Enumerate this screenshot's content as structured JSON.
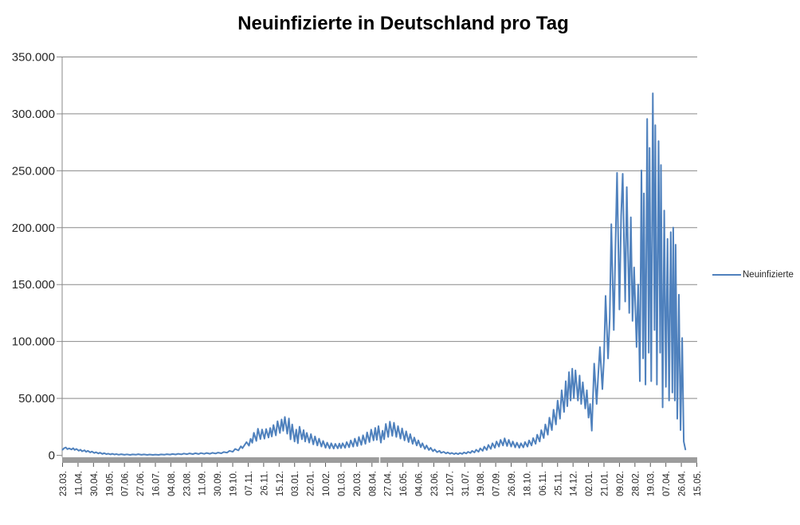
{
  "title": "Neuinfizierte in Deutschland pro Tag",
  "legend": {
    "series_label": "Neuinfizierte"
  },
  "colors": {
    "series_line": "#4F81BD",
    "gridline": "#898989",
    "axis_line": "#898989",
    "axis_bar": "#9C9C9C",
    "axis_bar_tick": "#FFFFFF",
    "minor_tick": "#595959",
    "label_text": "#262626",
    "title_text": "#000000"
  },
  "chart_data": {
    "type": "line",
    "title": "Neuinfizierte in Deutschland pro Tag",
    "series_name": "Neuinfizierte",
    "legend_position": "right",
    "grid": true,
    "ylim": [
      0,
      350000
    ],
    "y_ticks": [
      0,
      50000,
      100000,
      150000,
      200000,
      250000,
      300000,
      350000
    ],
    "y_tick_labels": [
      "0",
      "50.000",
      "100.000",
      "150.000",
      "200.000",
      "250.000",
      "300.000",
      "350.000"
    ],
    "x_tick_step_days": 19,
    "x_total_days": 780,
    "x_tick_labels": [
      "23.03.",
      "11.04.",
      "30.04.",
      "19.05.",
      "07.06.",
      "27.06.",
      "16.07.",
      "04.08.",
      "23.08.",
      "11.09.",
      "30.09.",
      "19.10.",
      "07.11.",
      "26.11.",
      "15.12.",
      "03.01.",
      "22.01.",
      "10.02.",
      "01.03.",
      "20.03.",
      "08.04.",
      "27.04.",
      "16.05.",
      "04.06.",
      "23.06.",
      "12.07.",
      "31.07.",
      "19.08.",
      "07.09.",
      "26.09.",
      "18.10.",
      "06.11.",
      "25.11.",
      "14.12.",
      "02.01.",
      "21.01.",
      "09.02.",
      "28.02.",
      "19.03.",
      "07.04.",
      "26.04.",
      "15.05."
    ],
    "points": [
      [
        0,
        4900
      ],
      [
        2,
        6300
      ],
      [
        4,
        6900
      ],
      [
        6,
        5300
      ],
      [
        8,
        6100
      ],
      [
        11,
        5100
      ],
      [
        13,
        6200
      ],
      [
        15,
        4700
      ],
      [
        17,
        5600
      ],
      [
        20,
        4000
      ],
      [
        22,
        5000
      ],
      [
        24,
        3500
      ],
      [
        27,
        4400
      ],
      [
        29,
        3000
      ],
      [
        31,
        3900
      ],
      [
        34,
        2500
      ],
      [
        36,
        3300
      ],
      [
        39,
        2000
      ],
      [
        41,
        2700
      ],
      [
        44,
        1600
      ],
      [
        46,
        2300
      ],
      [
        49,
        1200
      ],
      [
        51,
        1900
      ],
      [
        54,
        950
      ],
      [
        56,
        1500
      ],
      [
        59,
        750
      ],
      [
        61,
        1300
      ],
      [
        64,
        600
      ],
      [
        66,
        1100
      ],
      [
        69,
        500
      ],
      [
        72,
        950
      ],
      [
        76,
        420
      ],
      [
        79,
        850
      ],
      [
        83,
        380
      ],
      [
        86,
        750
      ],
      [
        90,
        500
      ],
      [
        93,
        950
      ],
      [
        97,
        420
      ],
      [
        100,
        800
      ],
      [
        104,
        380
      ],
      [
        107,
        700
      ],
      [
        111,
        330
      ],
      [
        114,
        650
      ],
      [
        118,
        380
      ],
      [
        121,
        750
      ],
      [
        125,
        480
      ],
      [
        128,
        950
      ],
      [
        132,
        620
      ],
      [
        135,
        1150
      ],
      [
        139,
        720
      ],
      [
        142,
        1350
      ],
      [
        146,
        820
      ],
      [
        149,
        1550
      ],
      [
        153,
        950
      ],
      [
        156,
        1650
      ],
      [
        160,
        1050
      ],
      [
        163,
        1850
      ],
      [
        167,
        1150
      ],
      [
        170,
        1950
      ],
      [
        174,
        1250
      ],
      [
        177,
        2050
      ],
      [
        181,
        1350
      ],
      [
        184,
        2150
      ],
      [
        188,
        1550
      ],
      [
        191,
        2350
      ],
      [
        195,
        1750
      ],
      [
        198,
        2900
      ],
      [
        202,
        2300
      ],
      [
        205,
        3900
      ],
      [
        209,
        3100
      ],
      [
        212,
        5600
      ],
      [
        216,
        4300
      ],
      [
        219,
        7900
      ],
      [
        221,
        6200
      ],
      [
        226,
        11600
      ],
      [
        229,
        8500
      ],
      [
        231,
        14500
      ],
      [
        233,
        11000
      ],
      [
        235,
        19800
      ],
      [
        238,
        12600
      ],
      [
        240,
        23400
      ],
      [
        243,
        14200
      ],
      [
        245,
        22700
      ],
      [
        248,
        14600
      ],
      [
        250,
        23100
      ],
      [
        253,
        15600
      ],
      [
        255,
        24000
      ],
      [
        257,
        16500
      ],
      [
        259,
        26600
      ],
      [
        262,
        17500
      ],
      [
        264,
        29900
      ],
      [
        267,
        19600
      ],
      [
        269,
        31500
      ],
      [
        271,
        21500
      ],
      [
        273,
        33700
      ],
      [
        276,
        19000
      ],
      [
        278,
        32400
      ],
      [
        280,
        14000
      ],
      [
        282,
        27100
      ],
      [
        285,
        12100
      ],
      [
        287,
        22600
      ],
      [
        289,
        10600
      ],
      [
        291,
        25100
      ],
      [
        294,
        14100
      ],
      [
        296,
        22100
      ],
      [
        298,
        12100
      ],
      [
        300,
        19700
      ],
      [
        303,
        11100
      ],
      [
        305,
        18600
      ],
      [
        308,
        9600
      ],
      [
        310,
        16600
      ],
      [
        313,
        8600
      ],
      [
        315,
        14600
      ],
      [
        318,
        7600
      ],
      [
        320,
        12600
      ],
      [
        323,
        6600
      ],
      [
        325,
        11100
      ],
      [
        328,
        6100
      ],
      [
        330,
        10600
      ],
      [
        333,
        5900
      ],
      [
        335,
        10100
      ],
      [
        338,
        6100
      ],
      [
        340,
        10300
      ],
      [
        342,
        6300
      ],
      [
        344,
        10600
      ],
      [
        347,
        6600
      ],
      [
        349,
        11600
      ],
      [
        352,
        7100
      ],
      [
        354,
        13100
      ],
      [
        357,
        7600
      ],
      [
        359,
        14600
      ],
      [
        362,
        8100
      ],
      [
        364,
        16100
      ],
      [
        367,
        9100
      ],
      [
        369,
        17600
      ],
      [
        372,
        10100
      ],
      [
        374,
        20100
      ],
      [
        377,
        11600
      ],
      [
        379,
        22600
      ],
      [
        382,
        13100
      ],
      [
        384,
        24100
      ],
      [
        386,
        13600
      ],
      [
        388,
        25600
      ],
      [
        391,
        11100
      ],
      [
        393,
        21600
      ],
      [
        395,
        14100
      ],
      [
        397,
        27600
      ],
      [
        400,
        16100
      ],
      [
        402,
        29600
      ],
      [
        405,
        17100
      ],
      [
        407,
        28600
      ],
      [
        410,
        16100
      ],
      [
        412,
        25600
      ],
      [
        415,
        14600
      ],
      [
        417,
        23600
      ],
      [
        420,
        13100
      ],
      [
        422,
        21100
      ],
      [
        425,
        11600
      ],
      [
        427,
        18600
      ],
      [
        430,
        10100
      ],
      [
        432,
        15600
      ],
      [
        435,
        8600
      ],
      [
        437,
        13100
      ],
      [
        440,
        7100
      ],
      [
        442,
        10600
      ],
      [
        445,
        5600
      ],
      [
        447,
        8600
      ],
      [
        450,
        4600
      ],
      [
        452,
        6600
      ],
      [
        455,
        3600
      ],
      [
        457,
        5100
      ],
      [
        460,
        2700
      ],
      [
        463,
        3900
      ],
      [
        465,
        2100
      ],
      [
        468,
        3100
      ],
      [
        471,
        1600
      ],
      [
        473,
        2500
      ],
      [
        476,
        1300
      ],
      [
        478,
        2100
      ],
      [
        481,
        1050
      ],
      [
        483,
        1900
      ],
      [
        486,
        1000
      ],
      [
        488,
        2000
      ],
      [
        491,
        1200
      ],
      [
        493,
        2500
      ],
      [
        496,
        1600
      ],
      [
        498,
        3100
      ],
      [
        501,
        2000
      ],
      [
        503,
        3900
      ],
      [
        506,
        2500
      ],
      [
        508,
        4900
      ],
      [
        511,
        3100
      ],
      [
        513,
        6100
      ],
      [
        516,
        3900
      ],
      [
        518,
        7600
      ],
      [
        521,
        4700
      ],
      [
        523,
        9100
      ],
      [
        526,
        5600
      ],
      [
        528,
        10600
      ],
      [
        531,
        6600
      ],
      [
        533,
        12100
      ],
      [
        536,
        7600
      ],
      [
        538,
        13600
      ],
      [
        541,
        8600
      ],
      [
        543,
        14900
      ],
      [
        546,
        8100
      ],
      [
        548,
        13600
      ],
      [
        551,
        7600
      ],
      [
        553,
        12100
      ],
      [
        556,
        6900
      ],
      [
        558,
        11100
      ],
      [
        561,
        6600
      ],
      [
        563,
        10600
      ],
      [
        566,
        6900
      ],
      [
        568,
        11600
      ],
      [
        571,
        7600
      ],
      [
        573,
        13100
      ],
      [
        576,
        8600
      ],
      [
        578,
        15100
      ],
      [
        581,
        10100
      ],
      [
        583,
        18100
      ],
      [
        586,
        12100
      ],
      [
        588,
        22100
      ],
      [
        591,
        15100
      ],
      [
        593,
        27100
      ],
      [
        596,
        18100
      ],
      [
        598,
        33100
      ],
      [
        601,
        22100
      ],
      [
        603,
        40100
      ],
      [
        606,
        27100
      ],
      [
        608,
        48100
      ],
      [
        611,
        32100
      ],
      [
        613,
        57100
      ],
      [
        616,
        38100
      ],
      [
        618,
        65100
      ],
      [
        620,
        43100
      ],
      [
        622,
        73100
      ],
      [
        624,
        48100
      ],
      [
        626,
        76100
      ],
      [
        628,
        50100
      ],
      [
        630,
        74600
      ],
      [
        633,
        48100
      ],
      [
        635,
        70100
      ],
      [
        637,
        45100
      ],
      [
        639,
        64100
      ],
      [
        642,
        41100
      ],
      [
        644,
        57100
      ],
      [
        646,
        33100
      ],
      [
        648,
        45100
      ],
      [
        650,
        21600
      ],
      [
        653,
        80600
      ],
      [
        656,
        45100
      ],
      [
        658,
        72100
      ],
      [
        660,
        95100
      ],
      [
        663,
        58100
      ],
      [
        665,
        85100
      ],
      [
        667,
        140100
      ],
      [
        670,
        85100
      ],
      [
        672,
        120100
      ],
      [
        674,
        203100
      ],
      [
        677,
        110100
      ],
      [
        679,
        180100
      ],
      [
        681,
        248200
      ],
      [
        684,
        128100
      ],
      [
        686,
        210100
      ],
      [
        688,
        247400
      ],
      [
        691,
        135100
      ],
      [
        693,
        235600
      ],
      [
        696,
        125100
      ],
      [
        698,
        209100
      ],
      [
        700,
        118100
      ],
      [
        702,
        165100
      ],
      [
        705,
        95100
      ],
      [
        707,
        150100
      ],
      [
        709,
        65100
      ],
      [
        711,
        250300
      ],
      [
        713,
        85100
      ],
      [
        714,
        230100
      ],
      [
        716,
        62100
      ],
      [
        718,
        295600
      ],
      [
        720,
        90100
      ],
      [
        721,
        270100
      ],
      [
        723,
        65100
      ],
      [
        725,
        318100
      ],
      [
        727,
        110100
      ],
      [
        728,
        290100
      ],
      [
        730,
        62100
      ],
      [
        732,
        276100
      ],
      [
        734,
        90100
      ],
      [
        735,
        255100
      ],
      [
        737,
        42100
      ],
      [
        739,
        215100
      ],
      [
        741,
        60100
      ],
      [
        743,
        190100
      ],
      [
        745,
        48100
      ],
      [
        747,
        196100
      ],
      [
        749,
        55100
      ],
      [
        750,
        200100
      ],
      [
        752,
        48100
      ],
      [
        753,
        185100
      ],
      [
        755,
        32100
      ],
      [
        757,
        141100
      ],
      [
        759,
        22100
      ],
      [
        761,
        103100
      ],
      [
        763,
        12100
      ],
      [
        765,
        5100
      ]
    ]
  }
}
